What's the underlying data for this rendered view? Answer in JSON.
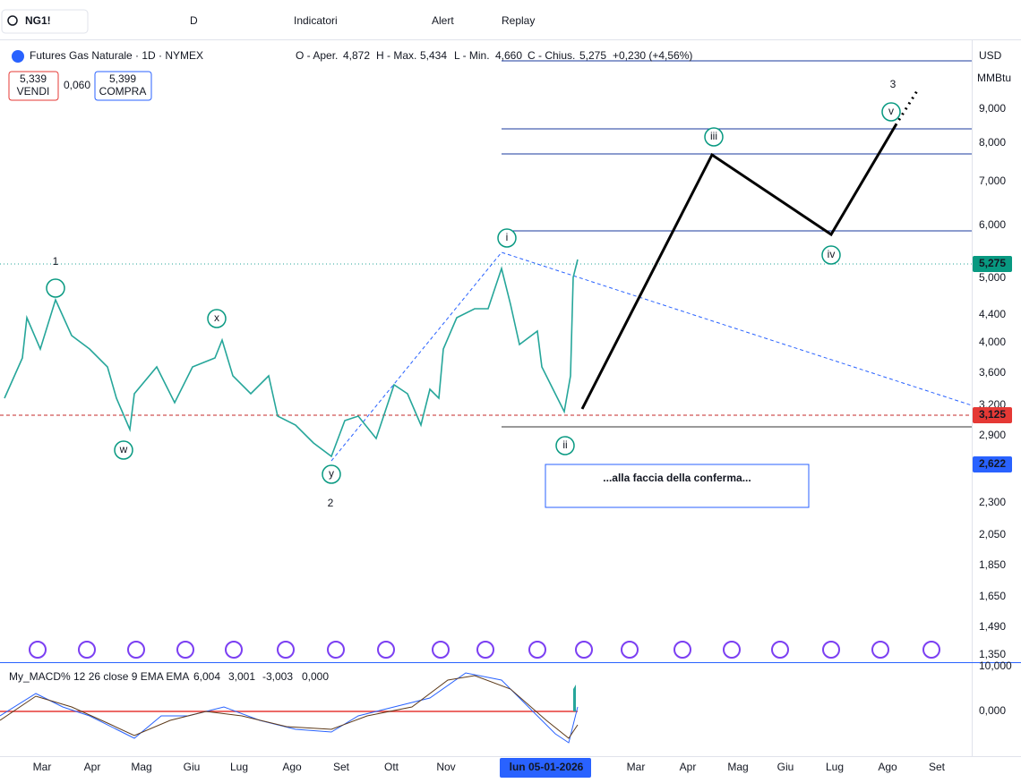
{
  "toolbar": {
    "symbol": "NG1!",
    "interval": "D",
    "indicators": "Indicatori",
    "alert": "Alert",
    "replay": "Replay"
  },
  "legend": {
    "title": "Futures Gas Naturale · 1D · NYMEX",
    "ohlc": [
      "O - Aper.",
      "4,872",
      "H - Max.",
      "5,434",
      "L - Min.",
      "4,660",
      "C - Chius.",
      "5,275",
      "+0,230 (+4,56%)"
    ]
  },
  "trade": {
    "sell_price": "5,339",
    "sell": "VENDI",
    "spread": "0,060",
    "buy_price": "5,399",
    "buy": "COMPRA"
  },
  "scale": {
    "currency": "USD",
    "unit": "MMBtu"
  },
  "price_axis": [
    "9,000",
    "8,000",
    "7,000",
    "6,000",
    "5,000",
    "4,400",
    "4,000",
    "3,600",
    "3,200",
    "2,900",
    "2,300",
    "2,050",
    "1,850",
    "1,650",
    "1,490",
    "1,350"
  ],
  "price_badges": [
    "5,275",
    "3,125",
    "2,622"
  ],
  "wave_degree": [
    "1",
    "2",
    "3"
  ],
  "wave_minor": [
    "i",
    "ii",
    "iii",
    "iv",
    "v",
    "w",
    "x",
    "y"
  ],
  "note": "...alla faccia della conferma...",
  "macd": {
    "title": "My_MACD% 12 26 close 9 EMA EMA",
    "values": [
      "6,004",
      "3,001",
      "-3,003",
      "0,000"
    ],
    "axis": [
      "10,000",
      "0,000"
    ]
  },
  "time_axis": [
    "Mar",
    "Apr",
    "Mag",
    "Giu",
    "Lug",
    "Ago",
    "Set",
    "Ott",
    "Nov",
    "lun 05-01-2026",
    "Mar",
    "Apr",
    "Mag",
    "Giu",
    "Lug",
    "Ago",
    "Set"
  ]
}
